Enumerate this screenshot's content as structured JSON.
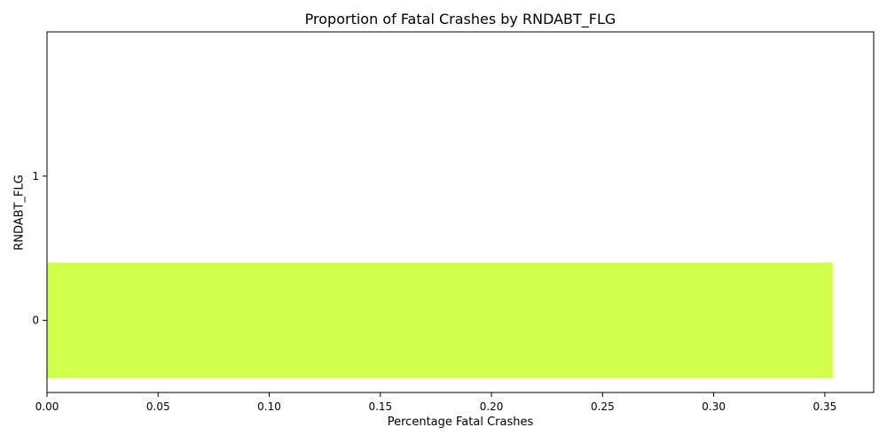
{
  "chart_data": {
    "type": "bar",
    "orientation": "horizontal",
    "title": "Proportion of Fatal Crashes by RNDABT_FLG",
    "xlabel": "Percentage Fatal Crashes",
    "ylabel": "RNDABT_FLG",
    "categories": [
      "0",
      "1"
    ],
    "values": [
      0.3535,
      0
    ],
    "xlim": [
      0,
      0.372
    ],
    "xticks": [
      "0.00",
      "0.05",
      "0.10",
      "0.15",
      "0.20",
      "0.25",
      "0.30",
      "0.35"
    ],
    "bar_color": "#d0ff4a",
    "grid": false,
    "legend": "none"
  }
}
